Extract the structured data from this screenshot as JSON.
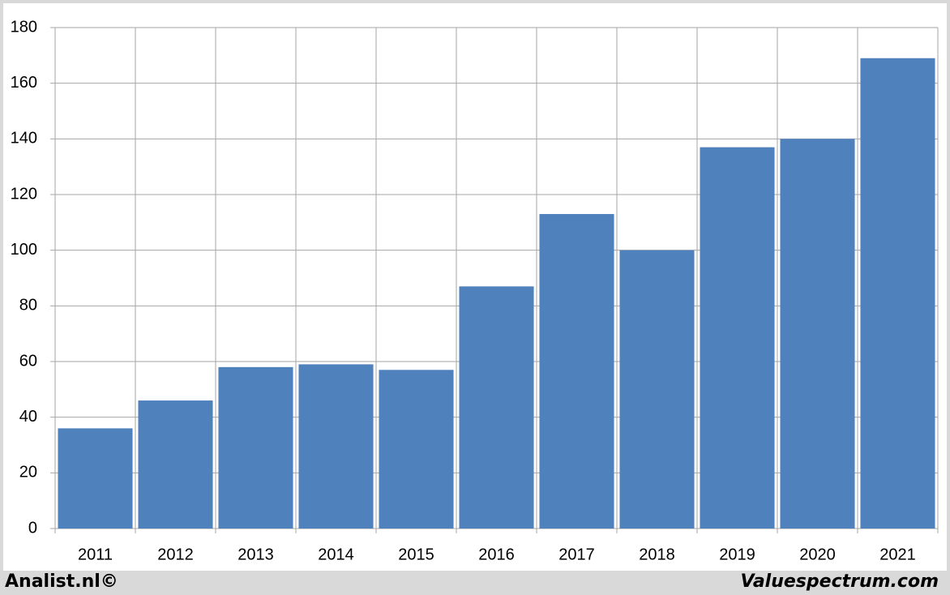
{
  "chart_data": {
    "type": "bar",
    "categories": [
      "2011",
      "2012",
      "2013",
      "2014",
      "2015",
      "2016",
      "2017",
      "2018",
      "2019",
      "2020",
      "2021"
    ],
    "values": [
      36,
      46,
      58,
      59,
      57,
      87,
      113,
      100,
      137,
      140,
      169
    ],
    "color": "#4f81bd",
    "ylim": [
      0,
      180
    ],
    "yticks": [
      0,
      20,
      40,
      60,
      80,
      100,
      120,
      140,
      160,
      180
    ],
    "grid": true,
    "annotations": [
      "Analist.nl©",
      "Valuespectrum.com"
    ]
  }
}
